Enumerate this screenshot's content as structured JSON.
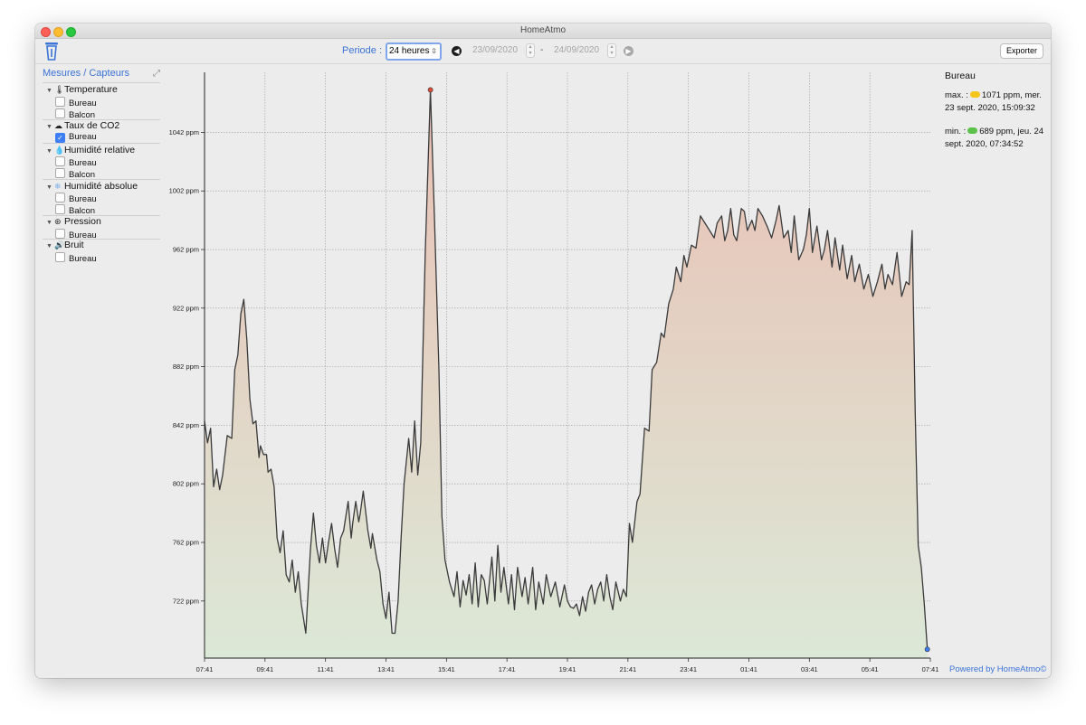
{
  "window": {
    "title": "HomeAtmo"
  },
  "toolbar": {
    "periode_label": "Periode :",
    "period_value": "24 heures",
    "date_start": "23/09/2020",
    "date_separator": "-",
    "date_end": "24/09/2020",
    "export_label": "Exporter"
  },
  "sidebar": {
    "title": "Mesures / Capteurs",
    "groups": [
      {
        "label": "Temperature",
        "icon": "thermometer-icon",
        "sensors": [
          {
            "label": "Bureau",
            "checked": false
          },
          {
            "label": "Balcon",
            "checked": false
          }
        ]
      },
      {
        "label": "Taux de CO2",
        "icon": "cloud-icon",
        "sensors": [
          {
            "label": "Bureau",
            "checked": true
          }
        ]
      },
      {
        "label": "Humidité relative",
        "icon": "drop-icon",
        "sensors": [
          {
            "label": "Bureau",
            "checked": false
          },
          {
            "label": "Balcon",
            "checked": false
          }
        ]
      },
      {
        "label": "Humidité absolue",
        "icon": "snowflake-icon",
        "sensors": [
          {
            "label": "Bureau",
            "checked": false
          },
          {
            "label": "Balcon",
            "checked": false
          }
        ]
      },
      {
        "label": "Pression",
        "icon": "gauge-icon",
        "sensors": [
          {
            "label": "Bureau",
            "checked": false
          }
        ]
      },
      {
        "label": "Bruit",
        "icon": "speaker-icon",
        "sensors": [
          {
            "label": "Bureau",
            "checked": false
          }
        ]
      }
    ]
  },
  "info": {
    "sensor": "Bureau",
    "max_prefix": "max. :",
    "max_text": "1071 ppm, mer. 23 sept. 2020, 15:09:32",
    "min_prefix": "min. :",
    "min_text": "689 ppm, jeu. 24 sept. 2020, 07:34:52",
    "max_color": "#f6c51b",
    "min_color": "#5cc24a"
  },
  "footer": {
    "powered": "Powered by HomeAtmo©"
  },
  "colors": {
    "accent": "#3b73d6",
    "line": "#3a3a3a",
    "fill_top": "#e9c0b4",
    "fill_bottom": "#dce8d7",
    "max_marker": "#e14b3c",
    "min_marker": "#3d7ef5"
  },
  "chart_data": {
    "type": "area",
    "unit": "ppm",
    "title": "",
    "xlabel": "",
    "ylabel": "",
    "grid": true,
    "x_ticks": [
      "07:41",
      "09:41",
      "11:41",
      "13:41",
      "15:41",
      "17:41",
      "19:41",
      "21:41",
      "23:41",
      "01:41",
      "03:41",
      "05:41",
      "07:41"
    ],
    "y_ticks": [
      "722 ppm",
      "762 ppm",
      "802 ppm",
      "842 ppm",
      "882 ppm",
      "922 ppm",
      "962 ppm",
      "1002 ppm",
      "1042 ppm"
    ],
    "ylim": [
      683,
      1083
    ],
    "xlim_hours": [
      0,
      24
    ],
    "max_point": {
      "hour": 7.47,
      "value": 1071
    },
    "min_point": {
      "hour": 23.9,
      "value": 689
    },
    "series": [
      {
        "values": [
          [
            0,
            845
          ],
          [
            0.1,
            830
          ],
          [
            0.2,
            840
          ],
          [
            0.3,
            800
          ],
          [
            0.4,
            812
          ],
          [
            0.5,
            798
          ],
          [
            0.6,
            808
          ],
          [
            0.75,
            835
          ],
          [
            0.9,
            833
          ],
          [
            1.0,
            880
          ],
          [
            1.1,
            890
          ],
          [
            1.2,
            918
          ],
          [
            1.3,
            928
          ],
          [
            1.4,
            900
          ],
          [
            1.5,
            860
          ],
          [
            1.6,
            843
          ],
          [
            1.7,
            845
          ],
          [
            1.8,
            820
          ],
          [
            1.85,
            828
          ],
          [
            1.95,
            822
          ],
          [
            2.05,
            822
          ],
          [
            2.1,
            810
          ],
          [
            2.2,
            812
          ],
          [
            2.3,
            800
          ],
          [
            2.4,
            765
          ],
          [
            2.5,
            755
          ],
          [
            2.6,
            770
          ],
          [
            2.7,
            740
          ],
          [
            2.8,
            735
          ],
          [
            2.9,
            750
          ],
          [
            3.0,
            728
          ],
          [
            3.1,
            742
          ],
          [
            3.2,
            720
          ],
          [
            3.35,
            700
          ],
          [
            3.5,
            757
          ],
          [
            3.6,
            782
          ],
          [
            3.7,
            760
          ],
          [
            3.8,
            748
          ],
          [
            3.9,
            765
          ],
          [
            4.0,
            748
          ],
          [
            4.1,
            762
          ],
          [
            4.2,
            775
          ],
          [
            4.3,
            758
          ],
          [
            4.4,
            745
          ],
          [
            4.5,
            765
          ],
          [
            4.6,
            770
          ],
          [
            4.75,
            790
          ],
          [
            4.85,
            765
          ],
          [
            4.9,
            775
          ],
          [
            5.0,
            790
          ],
          [
            5.1,
            776
          ],
          [
            5.15,
            782
          ],
          [
            5.25,
            797
          ],
          [
            5.4,
            770
          ],
          [
            5.5,
            758
          ],
          [
            5.55,
            768
          ],
          [
            5.7,
            750
          ],
          [
            5.8,
            742
          ],
          [
            5.9,
            720
          ],
          [
            6.0,
            710
          ],
          [
            6.1,
            728
          ],
          [
            6.2,
            700
          ],
          [
            6.3,
            700
          ],
          [
            6.4,
            722
          ],
          [
            6.5,
            765
          ],
          [
            6.6,
            802
          ],
          [
            6.75,
            833
          ],
          [
            6.85,
            810
          ],
          [
            6.95,
            845
          ],
          [
            7.05,
            808
          ],
          [
            7.15,
            830
          ],
          [
            7.3,
            960
          ],
          [
            7.47,
            1071
          ],
          [
            7.6,
            985
          ],
          [
            7.75,
            880
          ],
          [
            7.85,
            780
          ],
          [
            7.95,
            750
          ],
          [
            8.1,
            735
          ],
          [
            8.25,
            725
          ],
          [
            8.35,
            742
          ],
          [
            8.45,
            718
          ],
          [
            8.55,
            736
          ],
          [
            8.65,
            726
          ],
          [
            8.75,
            740
          ],
          [
            8.85,
            720
          ],
          [
            8.95,
            748
          ],
          [
            9.05,
            718
          ],
          [
            9.15,
            740
          ],
          [
            9.25,
            736
          ],
          [
            9.35,
            720
          ],
          [
            9.5,
            752
          ],
          [
            9.6,
            722
          ],
          [
            9.7,
            760
          ],
          [
            9.8,
            728
          ],
          [
            9.9,
            745
          ],
          [
            10.05,
            720
          ],
          [
            10.15,
            740
          ],
          [
            10.25,
            716
          ],
          [
            10.35,
            745
          ],
          [
            10.5,
            725
          ],
          [
            10.6,
            738
          ],
          [
            10.7,
            720
          ],
          [
            10.85,
            745
          ],
          [
            10.95,
            716
          ],
          [
            11.05,
            735
          ],
          [
            11.2,
            720
          ],
          [
            11.3,
            740
          ],
          [
            11.45,
            725
          ],
          [
            11.6,
            735
          ],
          [
            11.75,
            718
          ],
          [
            11.9,
            733
          ],
          [
            12.0,
            722
          ],
          [
            12.1,
            718
          ],
          [
            12.2,
            717
          ],
          [
            12.3,
            720
          ],
          [
            12.4,
            712
          ],
          [
            12.5,
            725
          ],
          [
            12.6,
            715
          ],
          [
            12.7,
            728
          ],
          [
            12.8,
            733
          ],
          [
            12.9,
            720
          ],
          [
            13.0,
            730
          ],
          [
            13.1,
            735
          ],
          [
            13.2,
            722
          ],
          [
            13.3,
            740
          ],
          [
            13.4,
            725
          ],
          [
            13.5,
            716
          ],
          [
            13.6,
            735
          ],
          [
            13.75,
            722
          ],
          [
            13.85,
            730
          ],
          [
            13.95,
            725
          ],
          [
            14.05,
            775
          ],
          [
            14.15,
            762
          ],
          [
            14.3,
            790
          ],
          [
            14.4,
            795
          ],
          [
            14.55,
            840
          ],
          [
            14.7,
            838
          ],
          [
            14.8,
            880
          ],
          [
            14.95,
            885
          ],
          [
            15.1,
            905
          ],
          [
            15.2,
            902
          ],
          [
            15.35,
            925
          ],
          [
            15.5,
            935
          ],
          [
            15.6,
            950
          ],
          [
            15.75,
            940
          ],
          [
            15.85,
            958
          ],
          [
            15.95,
            950
          ],
          [
            16.1,
            965
          ],
          [
            16.25,
            963
          ],
          [
            16.4,
            985
          ],
          [
            16.55,
            980
          ],
          [
            16.7,
            975
          ],
          [
            16.85,
            970
          ],
          [
            16.95,
            980
          ],
          [
            17.1,
            985
          ],
          [
            17.2,
            968
          ],
          [
            17.3,
            975
          ],
          [
            17.4,
            990
          ],
          [
            17.5,
            972
          ],
          [
            17.6,
            968
          ],
          [
            17.75,
            990
          ],
          [
            17.85,
            988
          ],
          [
            17.95,
            975
          ],
          [
            18.1,
            982
          ],
          [
            18.2,
            975
          ],
          [
            18.3,
            990
          ],
          [
            18.45,
            985
          ],
          [
            18.6,
            978
          ],
          [
            18.75,
            970
          ],
          [
            18.9,
            982
          ],
          [
            19.0,
            992
          ],
          [
            19.15,
            970
          ],
          [
            19.3,
            975
          ],
          [
            19.4,
            960
          ],
          [
            19.5,
            985
          ],
          [
            19.65,
            955
          ],
          [
            19.8,
            962
          ],
          [
            19.9,
            972
          ],
          [
            20.0,
            990
          ],
          [
            20.1,
            960
          ],
          [
            20.25,
            978
          ],
          [
            20.4,
            955
          ],
          [
            20.5,
            962
          ],
          [
            20.6,
            975
          ],
          [
            20.75,
            950
          ],
          [
            20.85,
            970
          ],
          [
            21.0,
            948
          ],
          [
            21.1,
            965
          ],
          [
            21.25,
            942
          ],
          [
            21.4,
            958
          ],
          [
            21.5,
            940
          ],
          [
            21.65,
            952
          ],
          [
            21.8,
            935
          ],
          [
            21.95,
            945
          ],
          [
            22.1,
            930
          ],
          [
            22.25,
            940
          ],
          [
            22.4,
            952
          ],
          [
            22.5,
            935
          ],
          [
            22.6,
            945
          ],
          [
            22.75,
            938
          ],
          [
            22.9,
            960
          ],
          [
            23.05,
            930
          ],
          [
            23.2,
            940
          ],
          [
            23.3,
            938
          ],
          [
            23.4,
            975
          ],
          [
            23.5,
            850
          ],
          [
            23.6,
            760
          ],
          [
            23.7,
            745
          ],
          [
            23.8,
            720
          ],
          [
            23.9,
            689
          ]
        ]
      }
    ]
  }
}
